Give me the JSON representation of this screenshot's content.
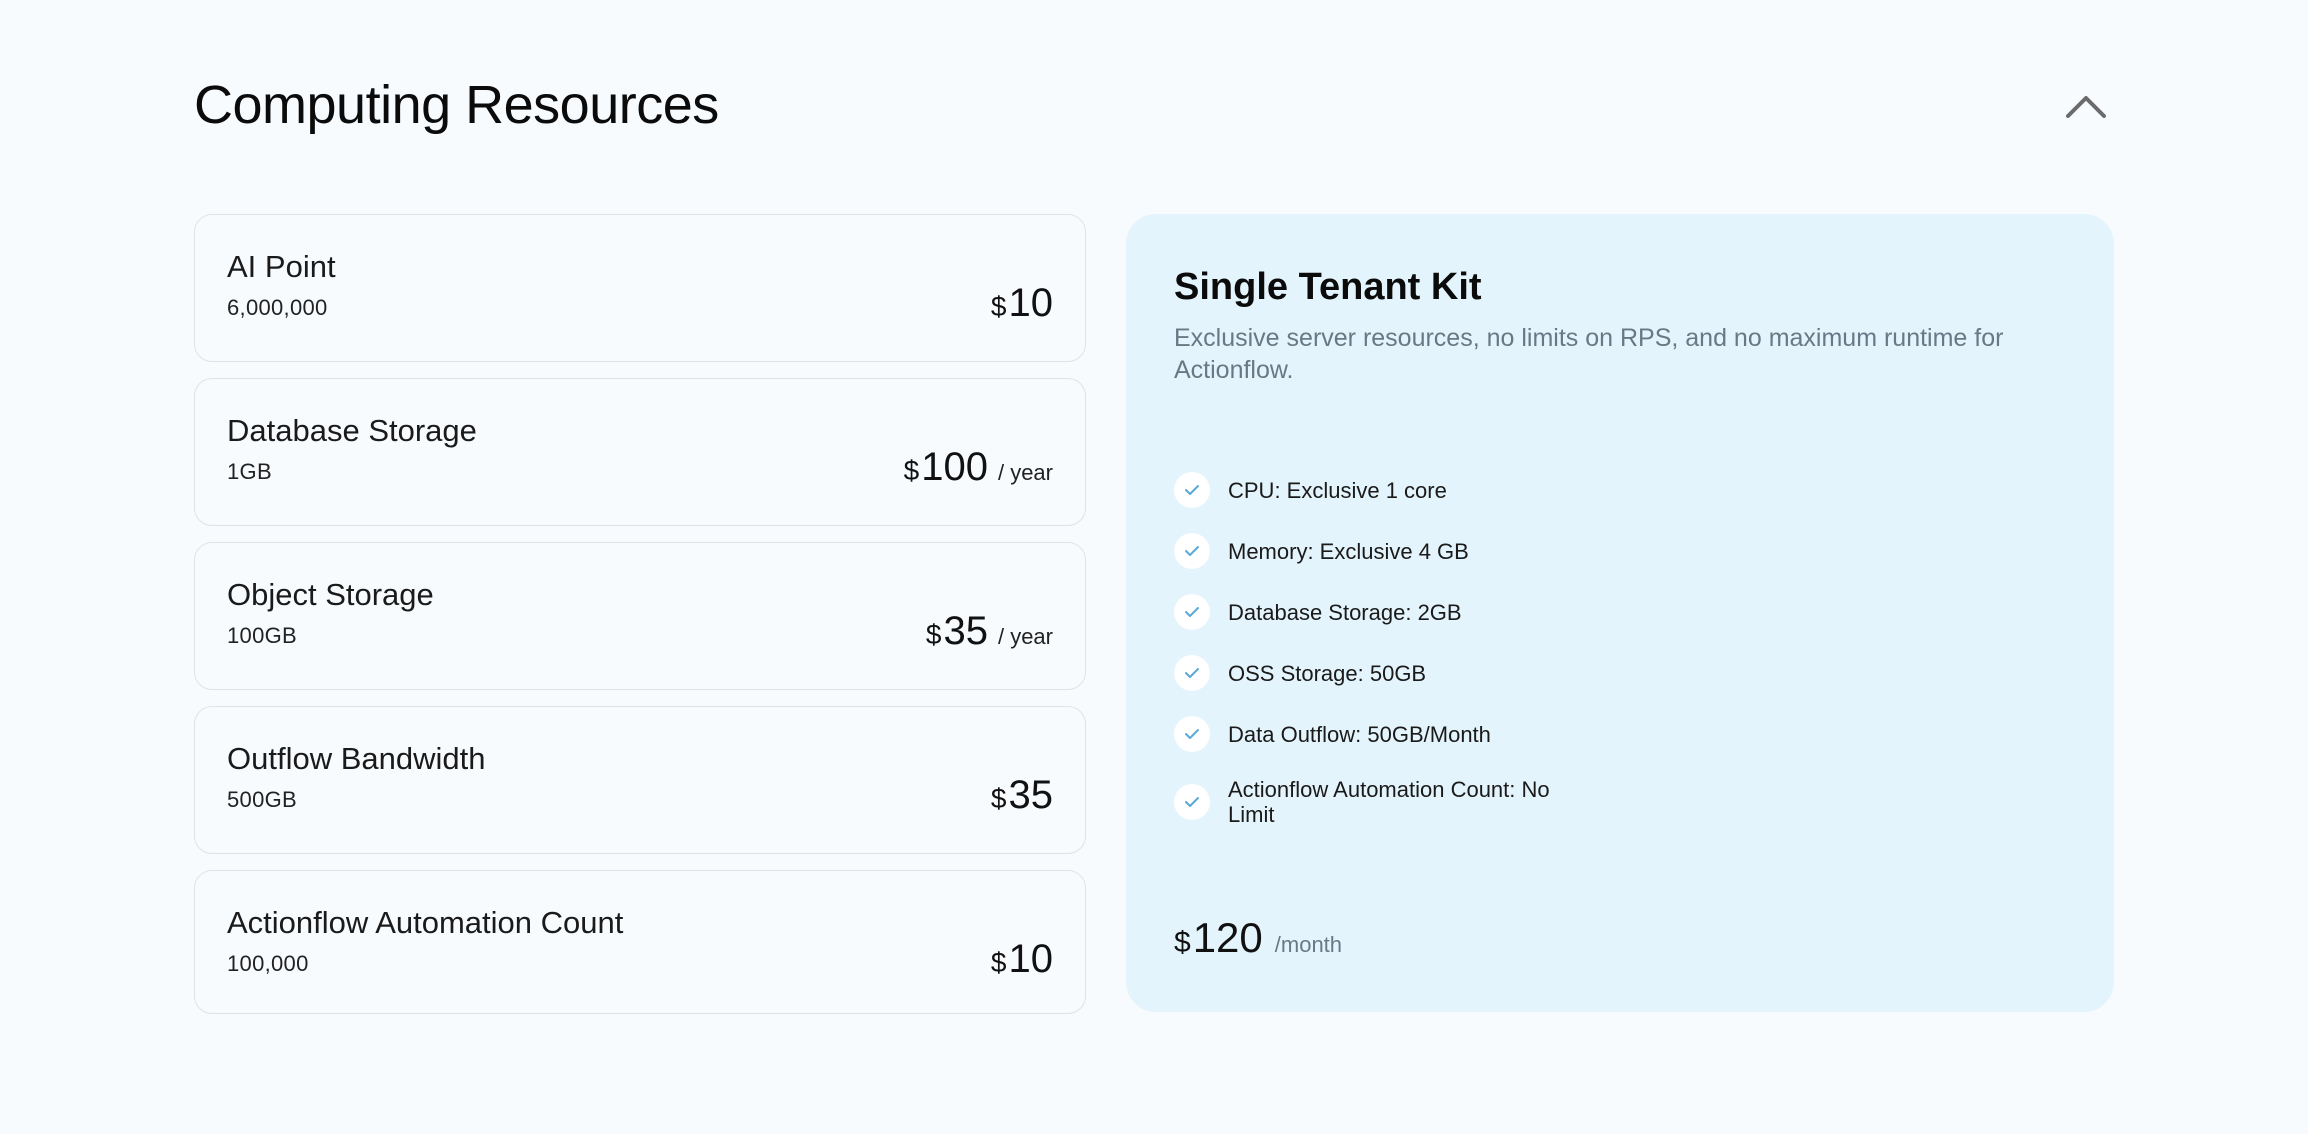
{
  "section": {
    "title": "Computing Resources"
  },
  "resources": [
    {
      "name": "AI Point",
      "amount": "6,000,000",
      "currency": "$",
      "price": "10",
      "period": ""
    },
    {
      "name": "Database Storage",
      "amount": "1GB",
      "currency": "$",
      "price": "100",
      "period": "/ year"
    },
    {
      "name": "Object Storage",
      "amount": "100GB",
      "currency": "$",
      "price": "35",
      "period": "/ year"
    },
    {
      "name": "Outflow Bandwidth",
      "amount": "500GB",
      "currency": "$",
      "price": "35",
      "period": ""
    },
    {
      "name": "Actionflow Automation Count",
      "amount": "100,000",
      "currency": "$",
      "price": "10",
      "period": ""
    }
  ],
  "kit": {
    "title": "Single Tenant Kit",
    "description": "Exclusive server resources, no limits on RPS, and no maximum runtime for Actionflow.",
    "features": [
      "CPU: Exclusive 1 core",
      "Memory: Exclusive 4 GB",
      "Database Storage: 2GB",
      "OSS Storage: 50GB",
      "Data Outflow: 50GB/Month",
      "Actionflow Automation Count: No Limit"
    ],
    "currency": "$",
    "price": "120",
    "period": "/month"
  },
  "colors": {
    "background": "#f7fbfe",
    "kit_background": "#e4f4fc",
    "check_color": "#5aa9d6",
    "muted_text": "#6a7886"
  },
  "icons": {
    "collapse": "chevron-up-icon",
    "feature": "check-icon"
  }
}
